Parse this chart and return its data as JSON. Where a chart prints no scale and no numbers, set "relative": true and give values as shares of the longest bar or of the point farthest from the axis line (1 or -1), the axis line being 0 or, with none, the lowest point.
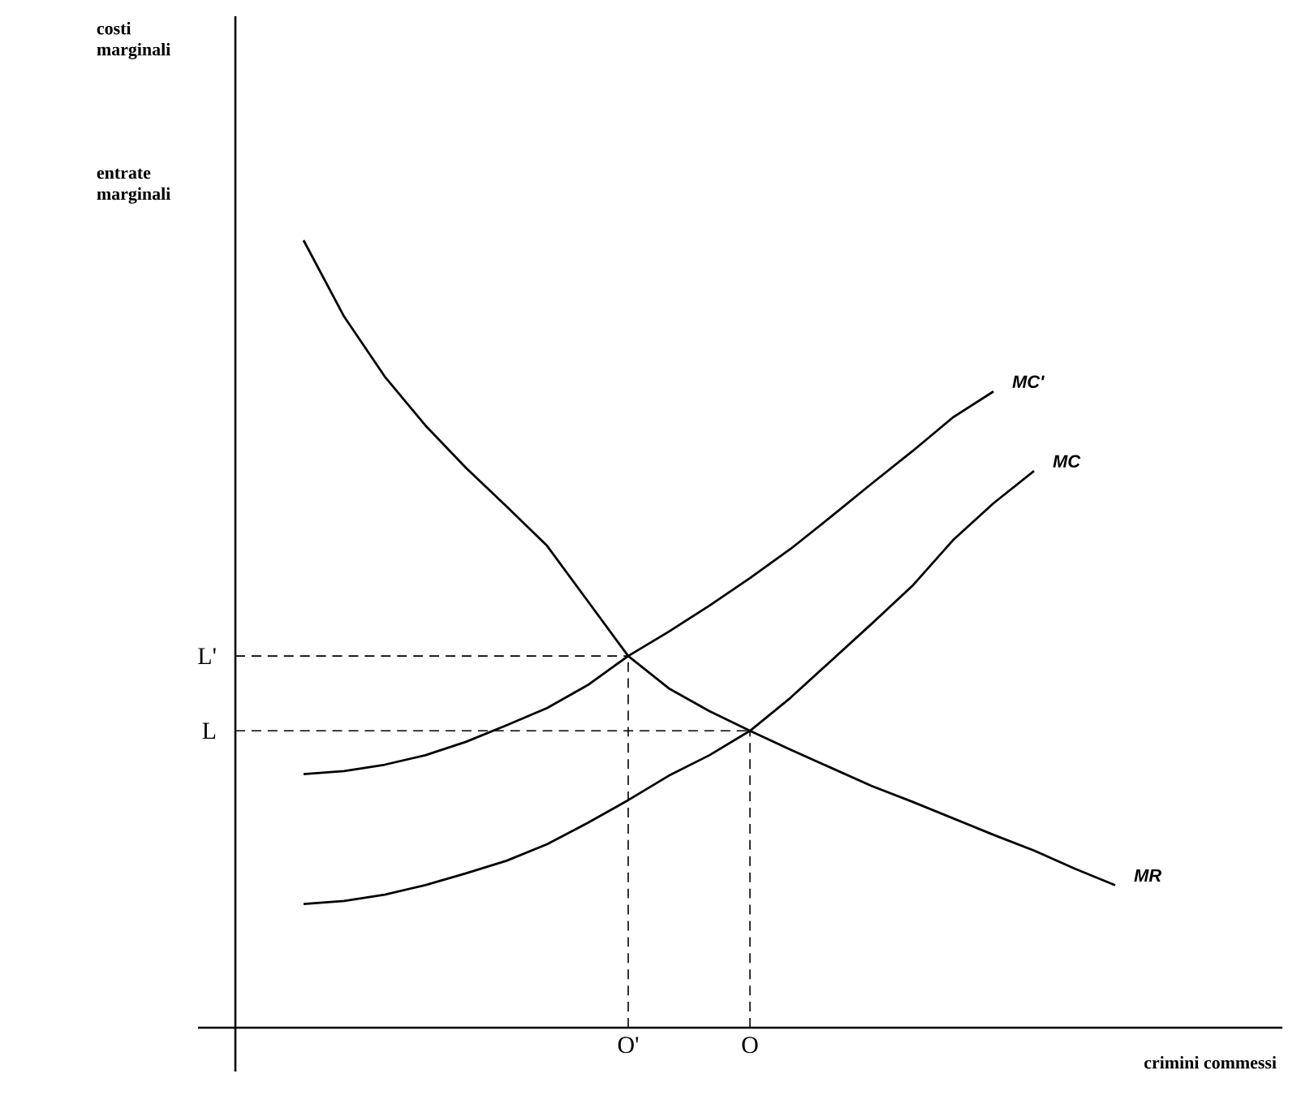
{
  "chart_data": {
    "type": "line",
    "relative": true,
    "xlabel": "crimini commessi",
    "annotations": [
      "costi marginali",
      "entrate marginali"
    ],
    "categories": [
      null,
      null,
      null,
      null,
      null,
      null,
      null,
      null,
      "O'",
      null,
      null,
      "O",
      null,
      null,
      null,
      null,
      null,
      null,
      null,
      null,
      null
    ],
    "ref_lines": [
      {
        "axis": "y",
        "value": 0.472,
        "label": "L'",
        "color": "#000000",
        "line_style": "dashed"
      },
      {
        "axis": "y",
        "value": 0.377,
        "label": "L",
        "color": "#000000",
        "line_style": "dashed"
      },
      {
        "axis": "x",
        "value": "O'",
        "color": "#000000",
        "line_style": "dashed"
      },
      {
        "axis": "x",
        "value": "O",
        "color": "#000000",
        "line_style": "dashed"
      }
    ],
    "series": [
      {
        "name": "MC'",
        "color": "#000000",
        "values": [
          0.322,
          0.326,
          0.334,
          0.346,
          0.363,
          0.384,
          0.406,
          0.435,
          0.472,
          0.503,
          0.536,
          0.571,
          0.608,
          0.649,
          0.691,
          0.732,
          0.775,
          0.808,
          null,
          null,
          null
        ]
      },
      {
        "name": "MC",
        "color": "#000000",
        "values": [
          0.157,
          0.161,
          0.169,
          0.181,
          0.196,
          0.212,
          0.233,
          0.26,
          0.289,
          0.32,
          0.346,
          0.377,
          0.419,
          0.466,
          0.513,
          0.561,
          0.619,
          0.666,
          0.707,
          null,
          null
        ]
      },
      {
        "name": "MR",
        "color": "#000000",
        "values": [
          1,
          0.903,
          0.827,
          0.765,
          0.711,
          0.662,
          0.612,
          0.542,
          0.472,
          0.431,
          0.402,
          0.377,
          0.353,
          0.33,
          0.307,
          0.287,
          0.266,
          0.245,
          0.225,
          0.202,
          0.181
        ]
      }
    ]
  }
}
